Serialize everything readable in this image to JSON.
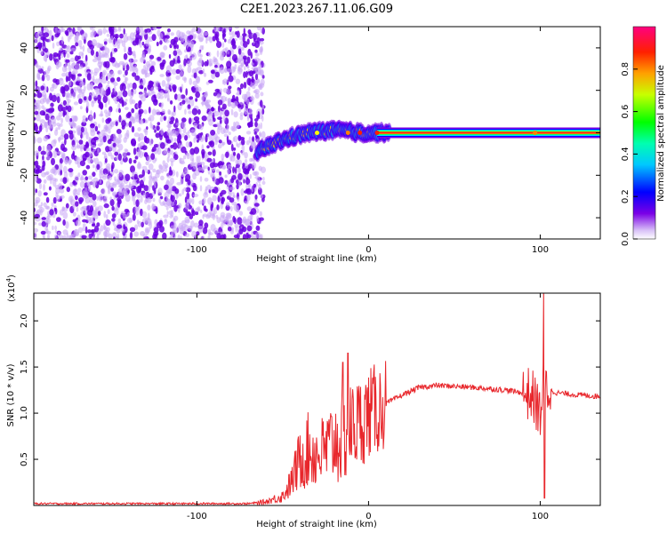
{
  "title": "C2E1.2023.267.11.06.G09",
  "colors": {
    "snr_line": "#e8262b",
    "scatter_dark": "#6a00e0",
    "scatter_light": "#c9a6f5",
    "ridge": "#ff1a1a"
  },
  "chart_data": [
    {
      "type": "heatmap",
      "title": "C2E1.2023.267.11.06.G09",
      "xlabel": "Height of straight line (km)",
      "ylabel": "Frequency (Hz)",
      "xlim": [
        -195,
        135
      ],
      "ylim": [
        -50,
        50
      ],
      "x_ticks": [
        -100,
        0,
        100
      ],
      "y_ticks": [
        -40,
        -20,
        0,
        20,
        40
      ],
      "grid": false,
      "noise_region_x": [
        -195,
        -65
      ],
      "signal_track": {
        "x": [
          -65,
          -55,
          -45,
          -35,
          -25,
          -15,
          -5,
          0,
          10,
          50,
          90,
          100,
          135
        ],
        "y": [
          -9,
          -5,
          -2,
          0,
          1,
          1,
          0,
          0,
          0,
          0,
          0,
          0,
          0
        ]
      },
      "colorbar": {
        "label": "Normalized spectral amplitude",
        "range": [
          0.0,
          1.0
        ],
        "ticks": [
          "0.0",
          "0.2",
          "0.4",
          "0.6",
          "0.8"
        ],
        "colormap": "rainbow"
      }
    },
    {
      "type": "line",
      "xlabel": "Height of straight line (km)",
      "ylabel": "SNR (10 * v/v)",
      "multiplier_label": "(x10",
      "multiplier_exp": "4",
      "xlim": [
        -195,
        135
      ],
      "ylim": [
        0,
        2.3
      ],
      "x_ticks": [
        -100,
        0,
        100
      ],
      "y_ticks": [
        "0.5",
        "1.0",
        "1.5",
        "2.0"
      ],
      "grid": false,
      "series": [
        {
          "x": [
            -195,
            -150,
            -100,
            -70,
            -60,
            -50,
            -45,
            -40,
            -35,
            -30,
            -25,
            -20,
            -15,
            -10,
            -5,
            0,
            5,
            10,
            15,
            20,
            30,
            40,
            60,
            80,
            90,
            95,
            100,
            102,
            105,
            110,
            120,
            135
          ],
          "y": [
            0.02,
            0.02,
            0.02,
            0.02,
            0.04,
            0.1,
            0.25,
            0.5,
            0.6,
            0.55,
            0.6,
            0.7,
            0.7,
            0.85,
            0.9,
            1.0,
            1.05,
            1.1,
            1.15,
            1.2,
            1.28,
            1.3,
            1.28,
            1.25,
            1.22,
            1.2,
            1.0,
            1.3,
            1.25,
            1.22,
            1.2,
            1.18
          ]
        }
      ]
    }
  ]
}
